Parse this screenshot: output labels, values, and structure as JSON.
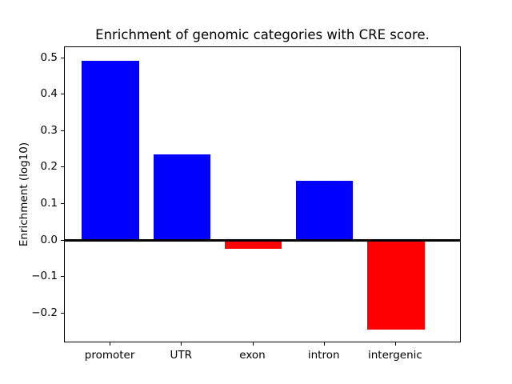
{
  "figure": {
    "title": "Enrichment of genomic categories with CRE score."
  },
  "chart_data": {
    "type": "bar",
    "title": "Enrichment of genomic categories with CRE score.",
    "categories": [
      "promoter",
      "UTR",
      "exon",
      "intron",
      "intergenic"
    ],
    "values": [
      0.493,
      0.235,
      -0.022,
      0.163,
      -0.245
    ],
    "bar_colors": [
      "#0000ff",
      "#0000ff",
      "#ff0000",
      "#0000ff",
      "#ff0000"
    ],
    "positive_color": "#0000ff",
    "negative_color": "#ff0000",
    "xlabel": "",
    "ylabel": "Enrichment (log10)",
    "ylim": [
      -0.282,
      0.53
    ],
    "yticks": [
      0.5,
      0.4,
      0.3,
      0.2,
      0.1,
      0.0,
      -0.1,
      -0.2
    ],
    "ytick_labels": [
      "0.5",
      "0.4",
      "0.3",
      "0.2",
      "0.1",
      "0.0",
      "−0.1",
      "−0.2"
    ],
    "zero_line": true,
    "grid": false,
    "legend": "none",
    "background": "#ffffff",
    "axis_color": "#000000"
  }
}
